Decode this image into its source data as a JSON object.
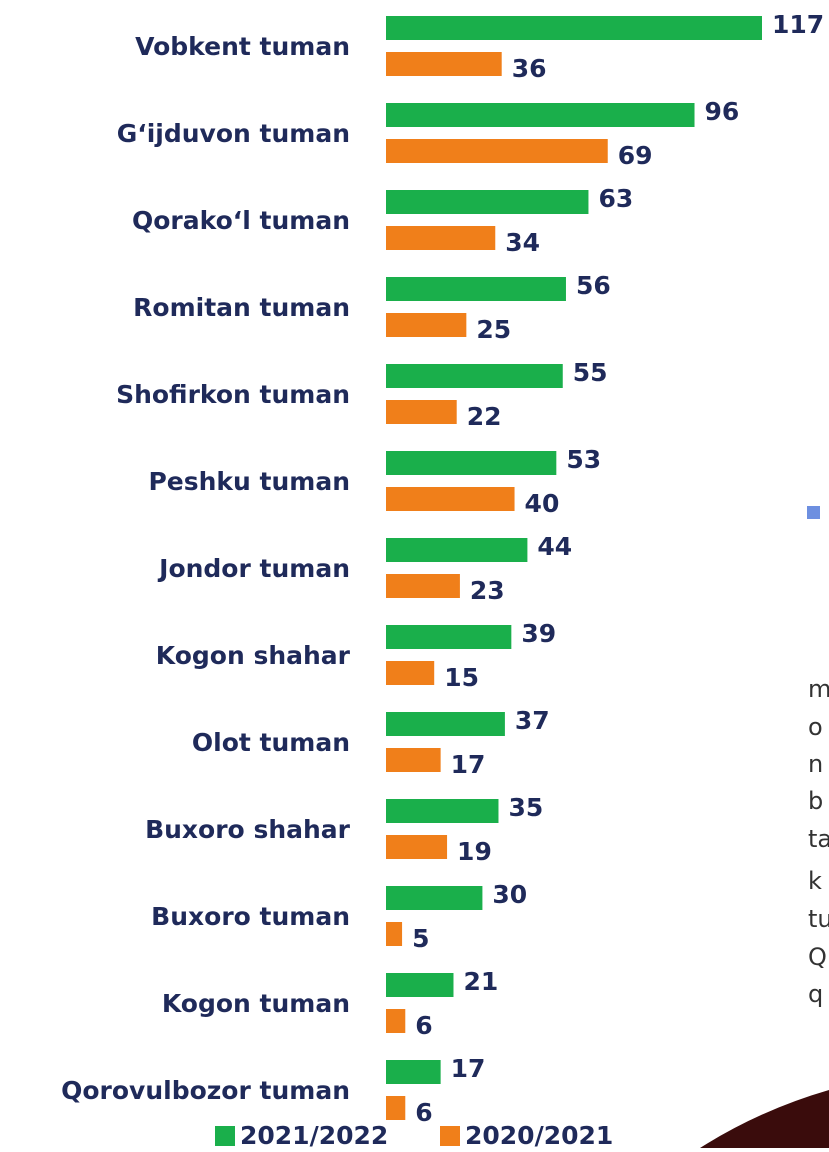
{
  "chart_data": {
    "type": "hbar",
    "categories": [
      "Vobkent tuman",
      "G‘ijduvon tuman",
      "Qorako‘l tuman",
      "Romitan tuman",
      "Shofirkon tuman",
      "Peshku tuman",
      "Jondor tuman",
      "Kogon shahar",
      "Olot tuman",
      "Buxoro shahar",
      "Buxoro tuman",
      "Kogon tuman",
      "Qorovulbozor tuman"
    ],
    "series": [
      {
        "name": "2021/2022",
        "color": "#1aaf4b",
        "values": [
          117,
          96,
          63,
          56,
          55,
          53,
          44,
          39,
          37,
          35,
          30,
          21,
          17
        ]
      },
      {
        "name": "2020/2021",
        "color": "#f07f1a",
        "values": [
          36,
          69,
          34,
          25,
          22,
          40,
          23,
          15,
          17,
          19,
          5,
          6,
          6
        ]
      }
    ],
    "legend": "bottom",
    "annotations": [
      "m",
      "o",
      "n",
      "b",
      "ta",
      "k",
      "tu",
      "Q",
      "q"
    ]
  }
}
